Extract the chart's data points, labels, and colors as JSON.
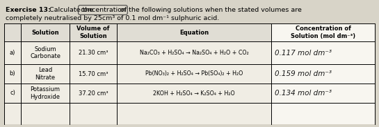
{
  "title_bold": "Exercise 13:",
  "title_calc": " Calculate the ",
  "title_circled": "concentration",
  "title_rest": " of the following solutions when the stated volumes are",
  "title_line2": "completely neutralised by 25cm³ of 0.1 mol dm⁻¹ sulphuric acid.",
  "col_headers_left": [
    "Solution",
    "Volume of\nSolution",
    "Equation"
  ],
  "col_header_right": "Concentration of\nSolution (mol dm⁻³)",
  "rows": [
    {
      "label": "a)",
      "solution": "Sodium\nCarbonate",
      "volume": "21.30 cm³",
      "equation": "Na₂CO₃ + H₂SO₄ → Na₂SO₄ + H₂O + CO₂",
      "concentration": "0.117 mol dm⁻³"
    },
    {
      "label": "b)",
      "solution": "Lead\nNitrate",
      "volume": "15.70 cm³",
      "equation": "Pb(NO₃)₂ + H₂SO₄ → Pb(SO₄)₂ + H₂O",
      "concentration": "0.159 mol dm⁻³"
    },
    {
      "label": "c)",
      "solution": "Potassium\nHydroxide",
      "volume": "37.20 cm³",
      "equation": "2KOH + H₂SO₄ → K₂SO₄ + H₂O",
      "concentration": "0.134 mol dm⁻³"
    }
  ],
  "bg_color": "#d8d4c8",
  "table_bg": "#f0ede4",
  "header_bg": "#e0ddd4",
  "conc_bg": "#f8f6f0",
  "font_size_title": 6.8,
  "font_size_table": 6.0,
  "font_size_conc": 7.5
}
